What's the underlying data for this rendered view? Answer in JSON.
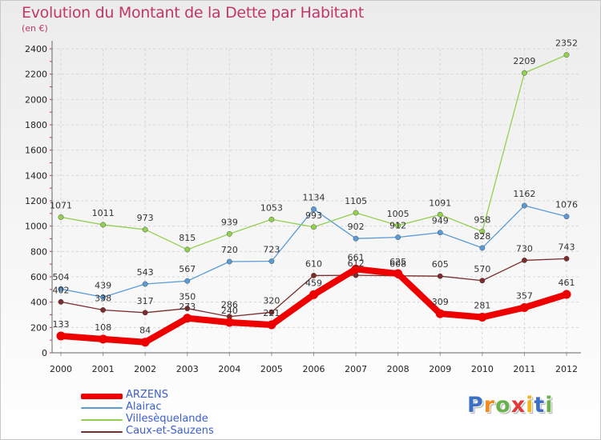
{
  "chart_data": {
    "type": "line",
    "title": "Evolution du Montant de la Dette par Habitant",
    "subtitle": "(en €)",
    "x": [
      "2000",
      "2001",
      "2002",
      "2003",
      "2004",
      "2005",
      "2006",
      "2007",
      "2008",
      "2009",
      "2010",
      "2011",
      "2012"
    ],
    "yticks": [
      "0",
      "200",
      "400",
      "600",
      "800",
      "1000",
      "1200",
      "1400",
      "1600",
      "1800",
      "2000",
      "2200",
      "2400"
    ],
    "ylim": [
      0,
      2400
    ],
    "grid": true,
    "legend_position": "bottom-left",
    "series": [
      {
        "name": "ARZENS",
        "color": "#ee0000",
        "values": [
          133,
          108,
          84,
          273,
          240,
          221,
          459,
          661,
          625,
          309,
          281,
          357,
          461
        ],
        "labels": [
          "133",
          "108",
          "84",
          "273",
          "240",
          "221",
          "459",
          "661",
          "625",
          "309",
          "281",
          "357",
          "461"
        ]
      },
      {
        "name": "Alairac",
        "color": "#5b9bd5",
        "values": [
          504,
          439,
          543,
          567,
          720,
          723,
          1134,
          902,
          912,
          949,
          828,
          1162,
          1076
        ],
        "labels": [
          "504",
          "439",
          "543",
          "567",
          "720",
          "723",
          "1134",
          "902",
          "912",
          "949",
          "828",
          "1162",
          "1076"
        ]
      },
      {
        "name": "Villesèquelande",
        "color": "#92d050",
        "values": [
          1071,
          1011,
          973,
          815,
          939,
          1053,
          993,
          1105,
          1005,
          1091,
          958,
          2209,
          2352
        ],
        "labels": [
          "1071",
          "1011",
          "973",
          "815",
          "939",
          "1053",
          "993",
          "1105",
          "1005",
          "1091",
          "958",
          "2209",
          "2352"
        ]
      },
      {
        "name": "Caux-et-Sauzens",
        "color": "#7b2c2c",
        "values": [
          402,
          338,
          317,
          350,
          286,
          320,
          610,
          612,
          608,
          605,
          570,
          730,
          743
        ],
        "labels": [
          "402",
          "338",
          "317",
          "350",
          "286",
          "320",
          "610",
          "612",
          "608",
          "605",
          "570",
          "730",
          "743"
        ]
      }
    ]
  },
  "logo": {
    "letters": [
      "P",
      "r",
      "o",
      "x",
      "i",
      "t",
      "i"
    ],
    "colors": [
      "#3d6fc7",
      "#f28c1e",
      "#6ab04c",
      "#e03a3a",
      "#f2b51e",
      "#3d6fc7",
      "#6ab04c"
    ]
  }
}
